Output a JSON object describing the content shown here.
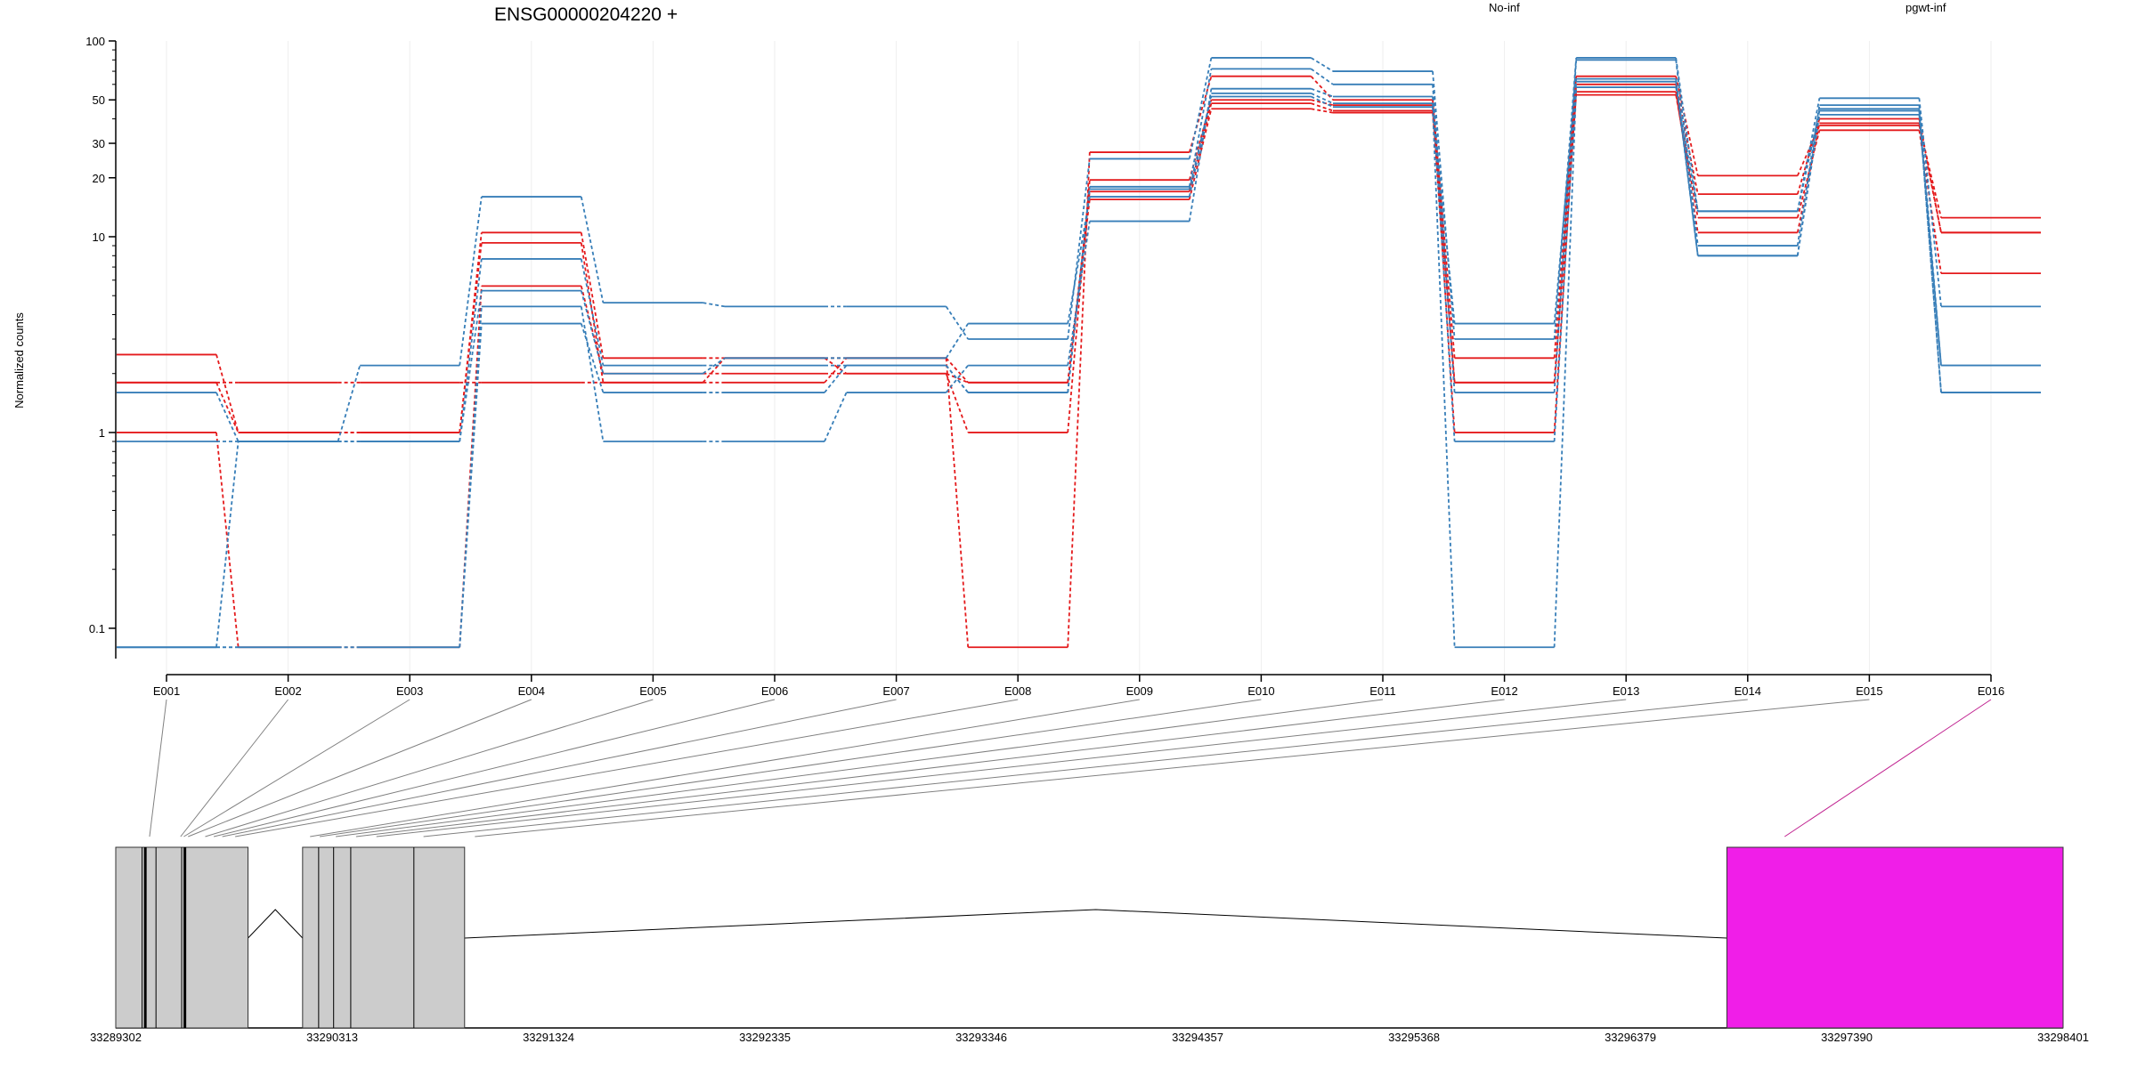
{
  "colors": {
    "no_inf": "#e41a1c",
    "pgwt_inf": "#377eb8",
    "exon_fill": "#cccccc",
    "highlight_exon": "#f01ee8",
    "grid": "#eeeeee",
    "axis": "#000000",
    "connector": "#808080",
    "highlight_connector": "#c0218f"
  },
  "chart_data": {
    "type": "line",
    "title": "ENSG00000204220 +",
    "ylabel": "Normalized counts",
    "xlabel": "",
    "y_scale": "log",
    "ylim": [
      0.07,
      100
    ],
    "y_ticks": [
      {
        "value": 0.1,
        "label": "0.1"
      },
      {
        "value": 1,
        "label": "1"
      },
      {
        "value": 10,
        "label": "10"
      },
      {
        "value": 20,
        "label": "20"
      },
      {
        "value": 30,
        "label": "30"
      },
      {
        "value": 50,
        "label": "50"
      },
      {
        "value": 100,
        "label": "100"
      }
    ],
    "grid": "vertical-light",
    "legend_position": "top-right",
    "categories": [
      "E001",
      "E002",
      "E003",
      "E004",
      "E005",
      "E006",
      "E007",
      "E008",
      "E009",
      "E010",
      "E011",
      "E012",
      "E013",
      "E014",
      "E015",
      "E016"
    ],
    "legend": [
      {
        "label": "No-inf",
        "group": "no_inf"
      },
      {
        "label": "pgwt-inf",
        "group": "pgwt_inf"
      }
    ],
    "series": [
      {
        "group": "no_inf",
        "values": [
          2.5,
          1.0,
          1.0,
          10.5,
          2.4,
          2.4,
          2.4,
          0.08,
          27,
          66,
          50,
          2.4,
          66,
          20.5,
          37,
          12.5
        ]
      },
      {
        "group": "no_inf",
        "values": [
          1.8,
          1.0,
          1.0,
          9.3,
          1.8,
          2.4,
          2.0,
          1.0,
          19.5,
          50,
          47,
          1.0,
          60,
          16.5,
          40,
          10.5
        ]
      },
      {
        "group": "no_inf",
        "values": [
          1.0,
          0.08,
          0.08,
          5.6,
          2.0,
          2.0,
          2.0,
          1.8,
          15.5,
          45,
          43,
          1.8,
          53,
          12.5,
          35,
          6.5
        ]
      },
      {
        "group": "no_inf",
        "values": [
          1.8,
          1.8,
          1.8,
          1.8,
          1.8,
          1.8,
          2.4,
          1.8,
          17,
          48,
          44,
          1.8,
          55,
          10.5,
          38,
          10.5
        ]
      },
      {
        "group": "pgwt_inf",
        "values": [
          1.6,
          0.9,
          2.2,
          16,
          4.6,
          4.4,
          4.4,
          3.0,
          25,
          82,
          70,
          3.0,
          82,
          13.5,
          51,
          4.4
        ]
      },
      {
        "group": "pgwt_inf",
        "values": [
          0.9,
          0.9,
          0.9,
          7.7,
          2.2,
          2.2,
          2.2,
          1.6,
          18,
          72,
          60,
          1.6,
          80,
          9.0,
          47,
          2.2
        ]
      },
      {
        "group": "pgwt_inf",
        "values": [
          0.08,
          0.08,
          0.08,
          4.4,
          0.9,
          0.9,
          1.6,
          2.2,
          12,
          57,
          52,
          0.9,
          62,
          8.0,
          45,
          1.6
        ]
      },
      {
        "group": "pgwt_inf",
        "values": [
          0.08,
          0.08,
          0.08,
          3.6,
          1.6,
          1.6,
          2.2,
          1.6,
          17.5,
          52,
          46,
          0.08,
          58,
          13.5,
          44,
          1.6
        ]
      },
      {
        "group": "pgwt_inf",
        "values": [
          0.08,
          0.9,
          0.9,
          5.3,
          2.0,
          2.4,
          2.4,
          3.6,
          16,
          54,
          48,
          3.6,
          64,
          8.0,
          42,
          2.2
        ]
      }
    ],
    "gene_model": {
      "coordinate_labels": [
        "33289302",
        "33290313",
        "33291324",
        "33292335",
        "33293346",
        "33294357",
        "33295368",
        "33296379",
        "33297390",
        "33298401"
      ],
      "coordinate_range": [
        33289302,
        33298401
      ],
      "exon_blocks": [
        {
          "start": 33289302,
          "end": 33289920
        },
        {
          "start": 33290175,
          "end": 33290932
        }
      ],
      "exon_internal_boundaries": [
        33289425,
        33289440,
        33289490,
        33289610,
        33289625,
        33290250,
        33290320,
        33290400,
        33290695
      ],
      "highlight_exon": {
        "label": "E016",
        "start": 33296830,
        "end": 33298401
      },
      "introns": [
        {
          "start": 33289920,
          "end": 33290175
        },
        {
          "start": 33290932,
          "end": 33296830
        }
      ],
      "connector_targets": [
        33289460,
        33289605,
        33289620,
        33289640,
        33289720,
        33289760,
        33289800,
        33289860,
        33290210,
        33290255,
        33290330,
        33290425,
        33290520,
        33290740,
        33290980,
        33297100
      ]
    }
  }
}
